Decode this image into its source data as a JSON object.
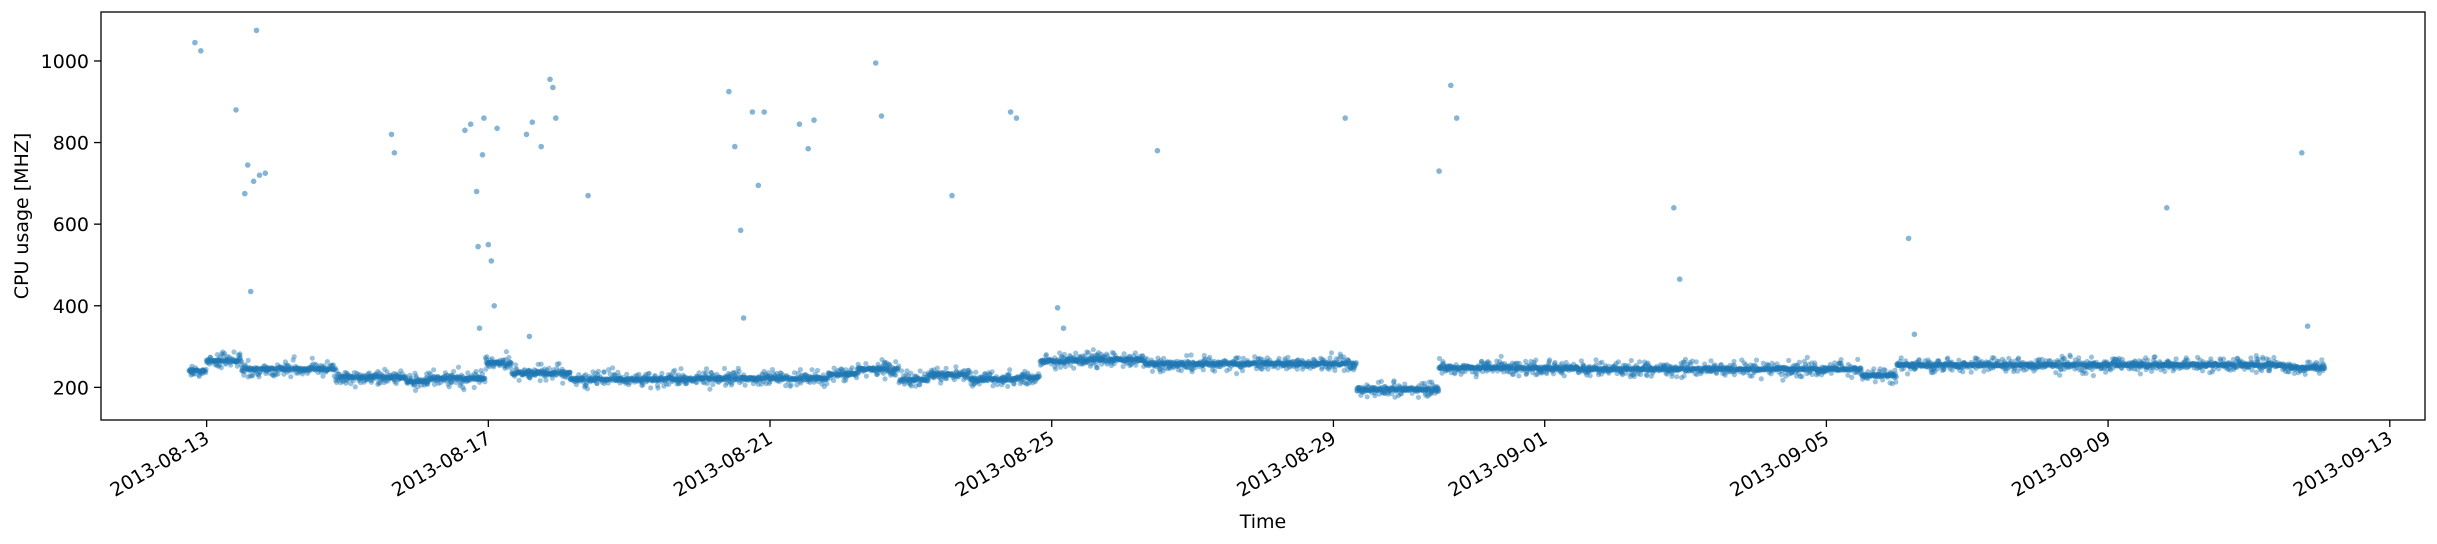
{
  "chart_data": {
    "type": "scatter",
    "title": "",
    "xlabel": "Time",
    "ylabel": "CPU usage [MHZ]",
    "x_type": "date",
    "xlim": [
      "2013-08-11T12:00",
      "2013-09-13T12:00"
    ],
    "ylim": [
      120,
      1120
    ],
    "x_ticks": [
      "2013-08-13",
      "2013-08-17",
      "2013-08-21",
      "2013-08-25",
      "2013-08-29",
      "2013-09-01",
      "2013-09-05",
      "2013-09-09",
      "2013-09-13"
    ],
    "y_ticks": [
      200,
      400,
      600,
      800,
      1000
    ],
    "grid": false,
    "legend": "none",
    "marker_color": "#1f77b4",
    "marker_alpha": 0.45,
    "baseline_segments": [
      {
        "start": "2013-08-12T18:00",
        "end": "2013-08-13T00:00",
        "level": 240
      },
      {
        "start": "2013-08-13T00:00",
        "end": "2013-08-13T12:00",
        "level": 265
      },
      {
        "start": "2013-08-13T12:00",
        "end": "2013-08-14T20:00",
        "level": 245
      },
      {
        "start": "2013-08-14T20:00",
        "end": "2013-08-15T20:00",
        "level": 225
      },
      {
        "start": "2013-08-15T20:00",
        "end": "2013-08-16T04:00",
        "level": 215
      },
      {
        "start": "2013-08-16T04:00",
        "end": "2013-08-16T23:00",
        "level": 222
      },
      {
        "start": "2013-08-16T23:00",
        "end": "2013-08-17T08:00",
        "level": 260
      },
      {
        "start": "2013-08-17T08:00",
        "end": "2013-08-18T04:00",
        "level": 235
      },
      {
        "start": "2013-08-18T04:00",
        "end": "2013-08-19T23:00",
        "level": 220
      },
      {
        "start": "2013-08-19T23:00",
        "end": "2013-08-21T20:00",
        "level": 222
      },
      {
        "start": "2013-08-21T20:00",
        "end": "2013-08-22T06:00",
        "level": 232
      },
      {
        "start": "2013-08-22T06:00",
        "end": "2013-08-22T20:00",
        "level": 245
      },
      {
        "start": "2013-08-22T20:00",
        "end": "2013-08-23T06:00",
        "level": 218
      },
      {
        "start": "2013-08-23T06:00",
        "end": "2013-08-23T20:00",
        "level": 232
      },
      {
        "start": "2013-08-23T20:00",
        "end": "2013-08-24T12:00",
        "level": 220
      },
      {
        "start": "2013-08-24T12:00",
        "end": "2013-08-24T20:00",
        "level": 225
      },
      {
        "start": "2013-08-24T20:00",
        "end": "2013-08-25T12:00",
        "level": 265
      },
      {
        "start": "2013-08-25T12:00",
        "end": "2013-08-26T08:00",
        "level": 268
      },
      {
        "start": "2013-08-26T08:00",
        "end": "2013-08-29T08:00",
        "level": 258
      },
      {
        "start": "2013-08-29T08:00",
        "end": "2013-08-30T12:00",
        "level": 195
      },
      {
        "start": "2013-08-30T12:00",
        "end": "2013-09-01T12:00",
        "level": 248
      },
      {
        "start": "2013-09-01T12:00",
        "end": "2013-09-05T12:00",
        "level": 245
      },
      {
        "start": "2013-09-05T12:00",
        "end": "2013-09-06T00:00",
        "level": 230
      },
      {
        "start": "2013-09-06T00:00",
        "end": "2013-09-11T12:00",
        "level": 255
      },
      {
        "start": "2013-09-11T12:00",
        "end": "2013-09-12T02:00",
        "level": 248
      }
    ],
    "outliers": [
      {
        "x": "2013-08-12T20:00",
        "y": 1045
      },
      {
        "x": "2013-08-12T22:00",
        "y": 1025
      },
      {
        "x": "2013-08-13T10:00",
        "y": 880
      },
      {
        "x": "2013-08-13T13:00",
        "y": 675
      },
      {
        "x": "2013-08-13T14:00",
        "y": 745
      },
      {
        "x": "2013-08-13T15:00",
        "y": 435
      },
      {
        "x": "2013-08-13T16:00",
        "y": 705
      },
      {
        "x": "2013-08-13T17:00",
        "y": 1075
      },
      {
        "x": "2013-08-13T18:00",
        "y": 720
      },
      {
        "x": "2013-08-13T20:00",
        "y": 725
      },
      {
        "x": "2013-08-15T15:00",
        "y": 820
      },
      {
        "x": "2013-08-15T16:00",
        "y": 775
      },
      {
        "x": "2013-08-16T16:00",
        "y": 830
      },
      {
        "x": "2013-08-16T18:00",
        "y": 845
      },
      {
        "x": "2013-08-16T20:00",
        "y": 680
      },
      {
        "x": "2013-08-16T21:00",
        "y": 345
      },
      {
        "x": "2013-08-16T22:00",
        "y": 770
      },
      {
        "x": "2013-08-16T20:30",
        "y": 545
      },
      {
        "x": "2013-08-16T22:30",
        "y": 860
      },
      {
        "x": "2013-08-17T00:00",
        "y": 550
      },
      {
        "x": "2013-08-17T01:00",
        "y": 510
      },
      {
        "x": "2013-08-17T02:00",
        "y": 400
      },
      {
        "x": "2013-08-17T03:00",
        "y": 835
      },
      {
        "x": "2013-08-17T13:00",
        "y": 820
      },
      {
        "x": "2013-08-17T14:00",
        "y": 325
      },
      {
        "x": "2013-08-17T15:00",
        "y": 850
      },
      {
        "x": "2013-08-17T18:00",
        "y": 790
      },
      {
        "x": "2013-08-17T21:00",
        "y": 955
      },
      {
        "x": "2013-08-17T22:00",
        "y": 935
      },
      {
        "x": "2013-08-17T23:00",
        "y": 860
      },
      {
        "x": "2013-08-18T10:00",
        "y": 670
      },
      {
        "x": "2013-08-20T10:00",
        "y": 925
      },
      {
        "x": "2013-08-20T12:00",
        "y": 790
      },
      {
        "x": "2013-08-20T14:00",
        "y": 585
      },
      {
        "x": "2013-08-20T15:00",
        "y": 370
      },
      {
        "x": "2013-08-20T18:00",
        "y": 875
      },
      {
        "x": "2013-08-20T20:00",
        "y": 695
      },
      {
        "x": "2013-08-20T22:00",
        "y": 875
      },
      {
        "x": "2013-08-21T10:00",
        "y": 845
      },
      {
        "x": "2013-08-21T13:00",
        "y": 785
      },
      {
        "x": "2013-08-21T15:00",
        "y": 855
      },
      {
        "x": "2013-08-22T12:00",
        "y": 995
      },
      {
        "x": "2013-08-22T14:00",
        "y": 865
      },
      {
        "x": "2013-08-23T14:00",
        "y": 670
      },
      {
        "x": "2013-08-24T10:00",
        "y": 875
      },
      {
        "x": "2013-08-24T12:00",
        "y": 860
      },
      {
        "x": "2013-08-25T02:00",
        "y": 395
      },
      {
        "x": "2013-08-25T04:00",
        "y": 345
      },
      {
        "x": "2013-08-26T12:00",
        "y": 780
      },
      {
        "x": "2013-08-29T04:00",
        "y": 860
      },
      {
        "x": "2013-08-30T12:00",
        "y": 730
      },
      {
        "x": "2013-08-30T16:00",
        "y": 940
      },
      {
        "x": "2013-08-30T18:00",
        "y": 860
      },
      {
        "x": "2013-09-02T20:00",
        "y": 640
      },
      {
        "x": "2013-09-02T22:00",
        "y": 465
      },
      {
        "x": "2013-09-06T04:00",
        "y": 565
      },
      {
        "x": "2013-09-06T06:00",
        "y": 330
      },
      {
        "x": "2013-09-09T20:00",
        "y": 640
      },
      {
        "x": "2013-09-11T18:00",
        "y": 775
      },
      {
        "x": "2013-09-11T20:00",
        "y": 350
      }
    ]
  }
}
